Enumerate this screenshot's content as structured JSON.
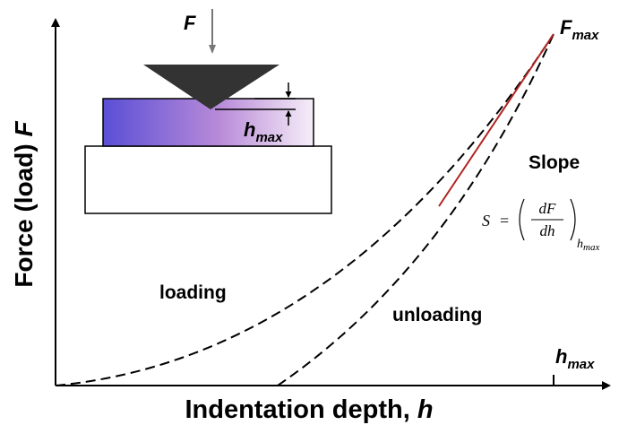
{
  "axes": {
    "y_label": {
      "text": "Force (load) ",
      "variable": "F"
    },
    "x_label": {
      "text": "Indentation depth, ",
      "variable": "h"
    },
    "x_marker": {
      "variable": "h",
      "subscript": "max"
    }
  },
  "inset": {
    "force": "F",
    "depth": {
      "variable": "h",
      "subscript": "max"
    }
  },
  "curves": {
    "peak": {
      "variable": "F",
      "subscript": "max"
    },
    "loading": "loading",
    "unloading": "unloading"
  },
  "slope": {
    "title": "Slope",
    "formula": {
      "lhs": "S",
      "eq": "=",
      "numerator": "dF",
      "denominator": "dh",
      "subscript": "h",
      "subsubscript": "max"
    }
  }
}
